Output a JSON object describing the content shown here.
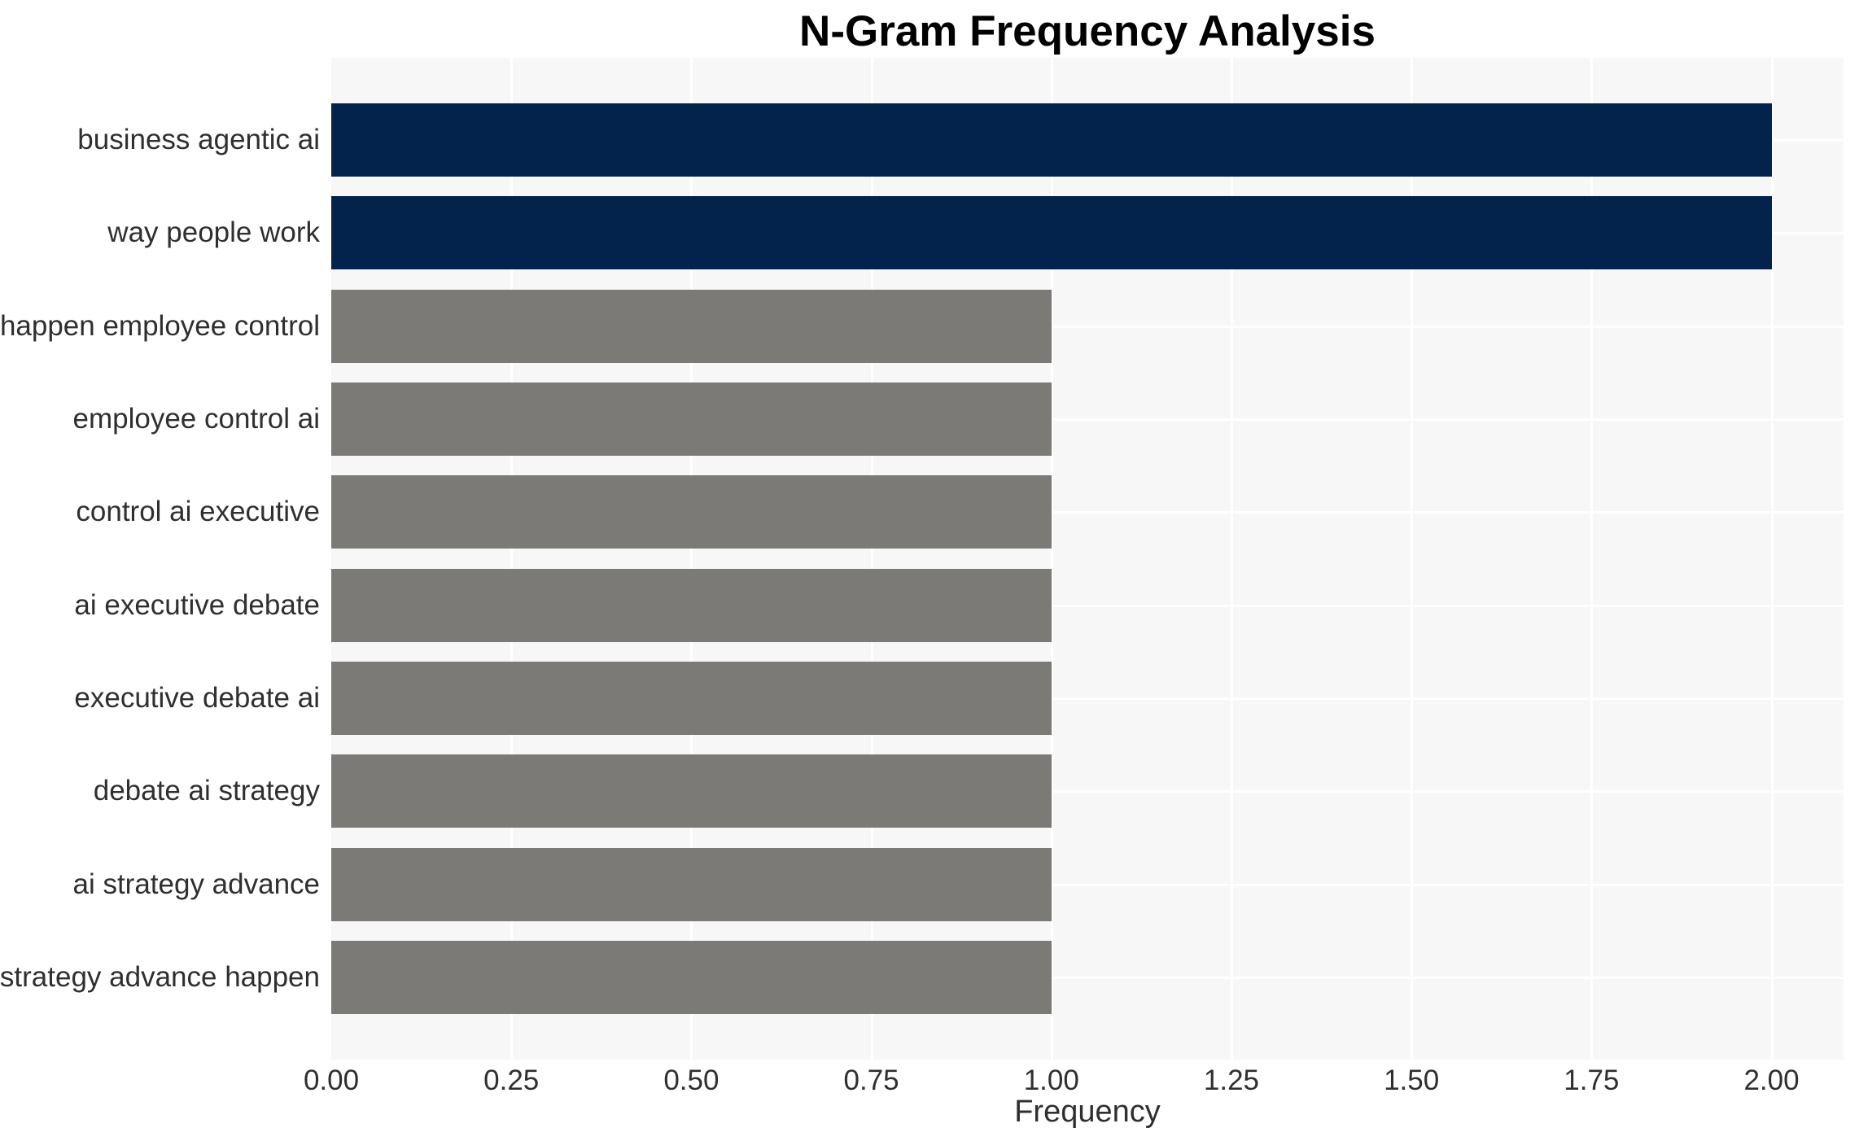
{
  "title": "N-Gram Frequency Analysis",
  "chart_data": {
    "type": "bar",
    "orientation": "horizontal",
    "title": "N-Gram Frequency Analysis",
    "categories": [
      "business agentic ai",
      "way people work",
      "happen employee control",
      "employee control ai",
      "control ai executive",
      "ai executive debate",
      "executive debate ai",
      "debate ai strategy",
      "ai strategy advance",
      "strategy advance happen"
    ],
    "values": [
      2,
      2,
      1,
      1,
      1,
      1,
      1,
      1,
      1,
      1
    ],
    "bar_colors": [
      "#03234C",
      "#03234C",
      "#7B7A77",
      "#7B7A77",
      "#7B7A77",
      "#7B7A77",
      "#7B7A77",
      "#7B7A77",
      "#7B7A77",
      "#7B7A77"
    ],
    "xlabel": "Frequency",
    "ylabel": "",
    "xlim": [
      0,
      2.1
    ],
    "xticks": [
      0,
      0.25,
      0.5,
      0.75,
      1.0,
      1.25,
      1.5,
      1.75,
      2.0
    ],
    "xtick_labels": [
      "0.00",
      "0.25",
      "0.50",
      "0.75",
      "1.00",
      "1.25",
      "1.50",
      "1.75",
      "2.00"
    ],
    "grid": true,
    "grid_color": "#FFFFFF",
    "legend_position": "none",
    "plot_background": "#F7F7F7",
    "page_background": "#FFFFFF",
    "accent_color_high": "#03234C",
    "accent_color_low": "#7B7A77"
  }
}
